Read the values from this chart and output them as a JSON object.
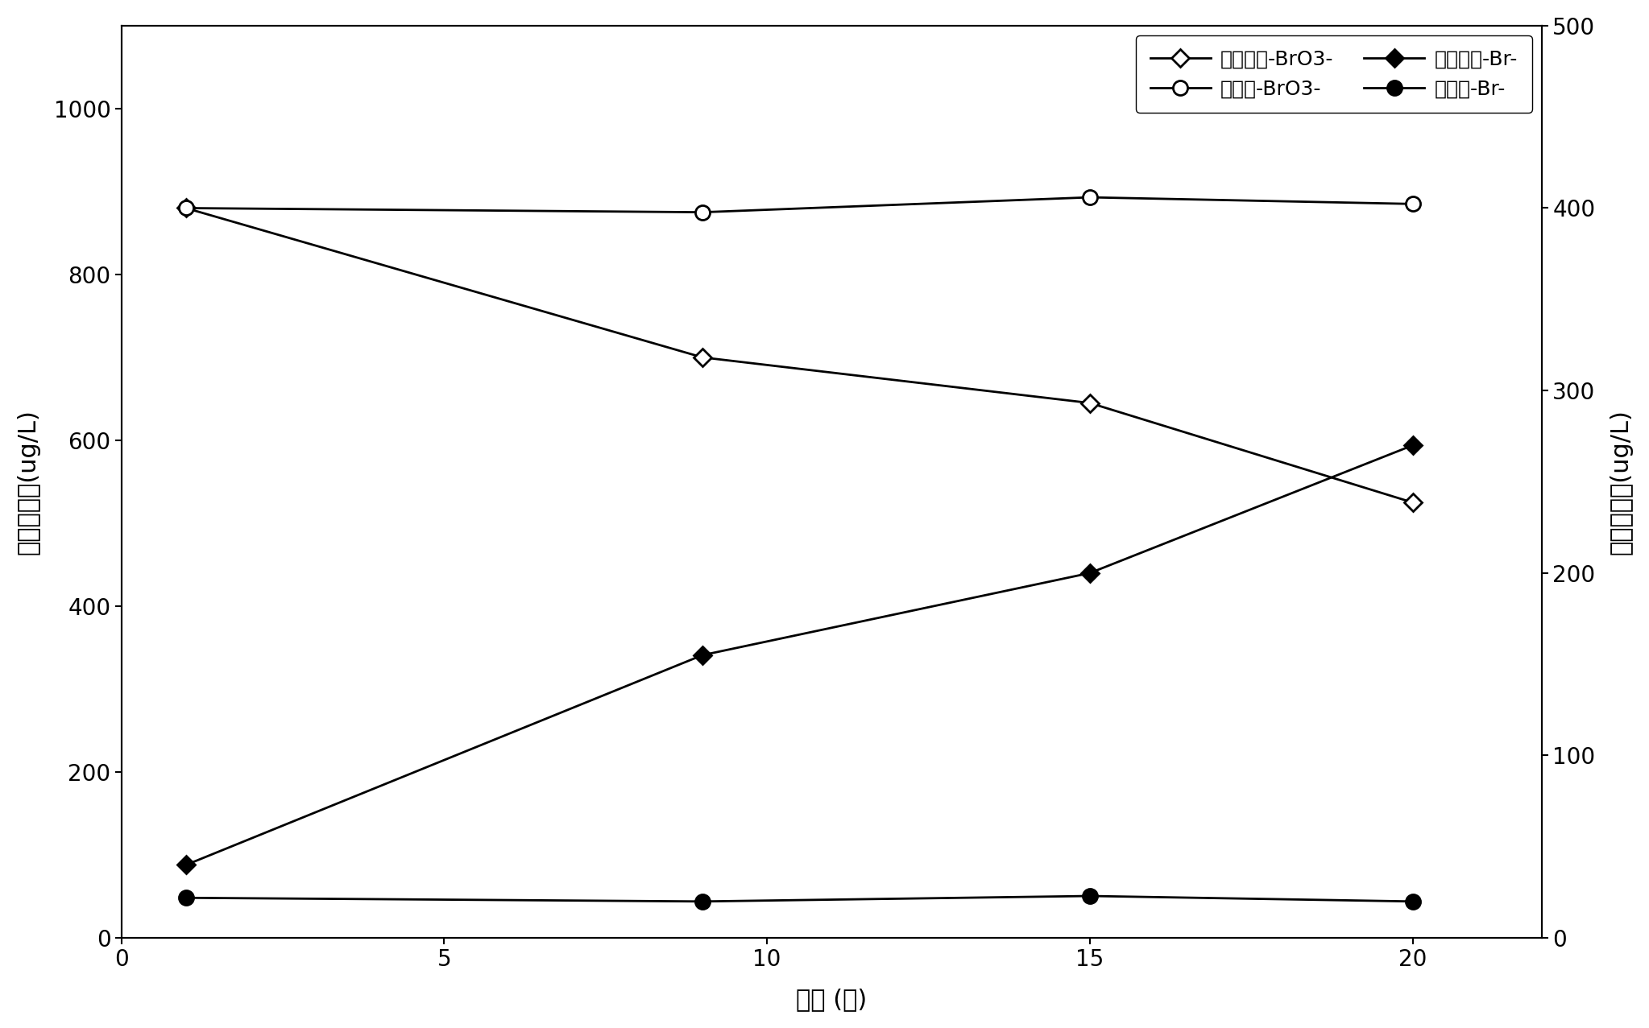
{
  "x": [
    1,
    9,
    15,
    20
  ],
  "bromate_inoculated": [
    880,
    700,
    645,
    525
  ],
  "bromate_control": [
    880,
    875,
    893,
    885
  ],
  "bromide_inoculated": [
    40,
    155,
    200,
    270
  ],
  "bromide_control": [
    22,
    20,
    23,
    20
  ],
  "xlabel": "时间 (天)",
  "ylabel_left": "溴酸盐浓度(ug/L)",
  "ylabel_right": "溴离子浓度(ug/L)",
  "xlim": [
    0,
    22
  ],
  "ylim_left": [
    0,
    1100
  ],
  "ylim_right": [
    0,
    500
  ],
  "xticks": [
    0,
    5,
    10,
    15,
    20
  ],
  "yticks_left": [
    0,
    200,
    400,
    600,
    800,
    1000
  ],
  "yticks_right": [
    0,
    100,
    200,
    300,
    400,
    500
  ],
  "legend_labels": [
    "接种菌株-BrO3-",
    "对照组-BrO3-",
    "接种菌株-Br-",
    "对照组-Br-"
  ],
  "line_color": "#000000",
  "bg_color": "#ffffff",
  "fontsize_label": 22,
  "fontsize_tick": 20,
  "fontsize_legend": 18
}
